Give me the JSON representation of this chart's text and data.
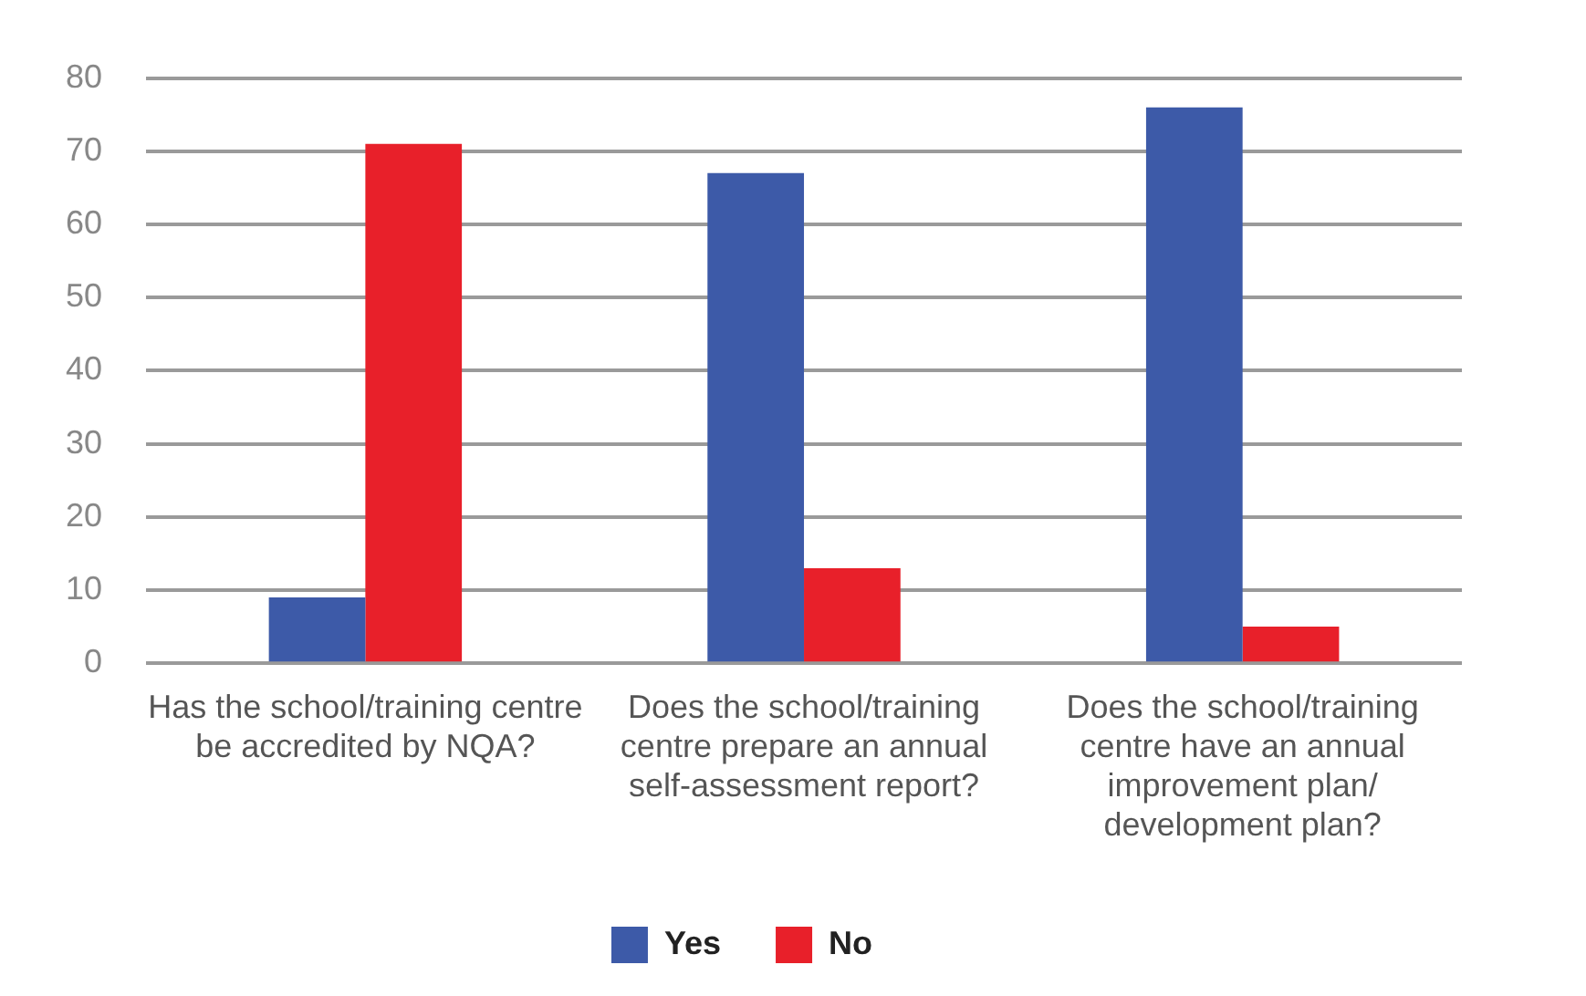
{
  "chart_data": {
    "type": "bar",
    "categories": [
      "Has the school/training centre be accredited by NQA?",
      "Does the school/training centre prepare an annual self-assessment report?",
      "Does the school/training centre have an annual improvement plan/ development plan?"
    ],
    "series": [
      {
        "name": "Yes",
        "color": "#3d5aa8",
        "values": [
          9,
          67,
          76
        ]
      },
      {
        "name": "No",
        "color": "#e8202a",
        "values": [
          71,
          13,
          5
        ]
      }
    ],
    "ylim": [
      0,
      80
    ],
    "yticks": [
      0,
      10,
      20,
      30,
      40,
      50,
      60,
      70,
      80
    ],
    "grid": "y",
    "legend": "bottom"
  }
}
